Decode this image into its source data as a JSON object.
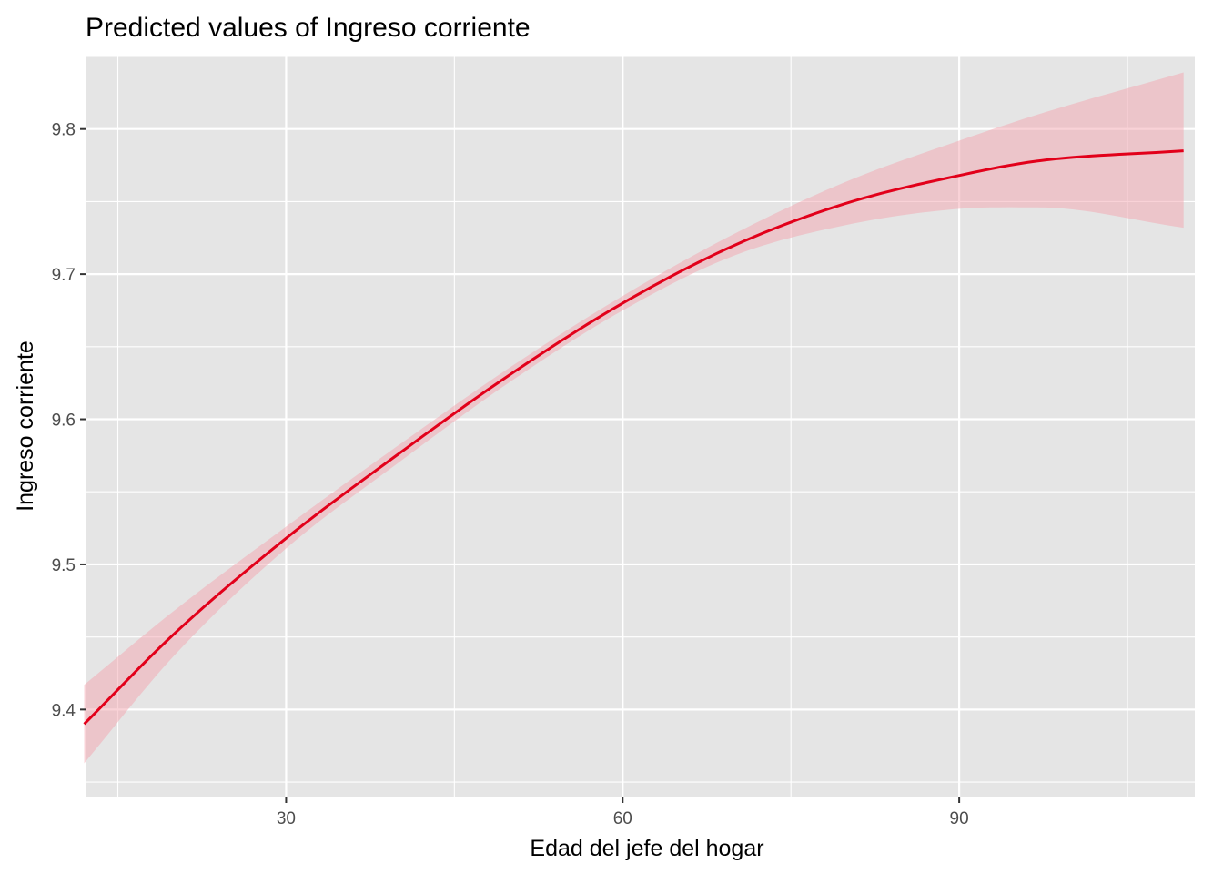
{
  "chart_data": {
    "type": "line",
    "title": "Predicted values of Ingreso corriente",
    "xlabel": "Edad del jefe del hogar",
    "ylabel": "Ingreso corriente",
    "xlim": [
      12.2,
      111.0
    ],
    "ylim": [
      9.34,
      9.85
    ],
    "x_ticks": [
      30,
      60,
      90
    ],
    "x_minor_ticks": [
      15,
      45,
      75,
      105
    ],
    "y_ticks": [
      9.4,
      9.5,
      9.6,
      9.7,
      9.8
    ],
    "y_minor_ticks": [
      9.35,
      9.45,
      9.55,
      9.65,
      9.75,
      9.85
    ],
    "grid": true,
    "legend": "none",
    "colors": {
      "line": "#e2001a",
      "ribbon": "#f4a6b0",
      "panel": "#e5e5e5",
      "grid": "#ffffff"
    },
    "series": [
      {
        "x": [
          12,
          20,
          30,
          40,
          50,
          60,
          70,
          80,
          90,
          97,
          110
        ],
        "y": [
          9.39,
          9.452,
          9.518,
          9.576,
          9.631,
          9.68,
          9.72,
          9.749,
          9.768,
          9.778,
          9.785
        ],
        "lower": [
          9.363,
          9.437,
          9.511,
          9.57,
          9.626,
          9.675,
          9.713,
          9.734,
          9.745,
          9.746,
          9.732
        ],
        "upper": [
          9.417,
          9.468,
          9.526,
          9.582,
          9.636,
          9.685,
          9.728,
          9.764,
          9.792,
          9.81,
          9.839
        ]
      }
    ]
  }
}
